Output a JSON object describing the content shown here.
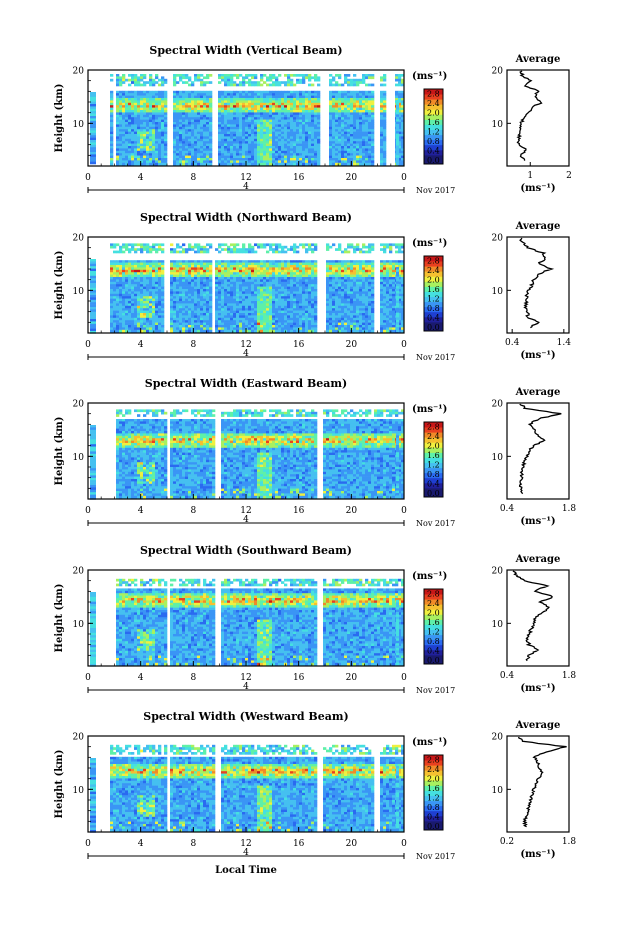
{
  "colors": {
    "scale": [
      "#1a1a6e",
      "#20209a",
      "#1f3fd0",
      "#2a6af0",
      "#3a95f5",
      "#45c0f0",
      "#45e0e0",
      "#5ef0a8",
      "#a8f060",
      "#f0f040",
      "#f5c030",
      "#f08a28",
      "#e84020",
      "#c81818"
    ],
    "band_under": "#1a1a6e"
  },
  "chart_data": [
    {
      "type": "heatmap",
      "title": "Spectral Width (Vertical Beam)",
      "ylabel": "Height (km)",
      "yticks": [
        "20",
        "10"
      ],
      "xticks": [
        "0",
        "4",
        "8",
        "12",
        "16",
        "20",
        "0"
      ],
      "date_label": "4",
      "month_label": "Nov 2017",
      "x_range": [
        0,
        24
      ],
      "y_range": [
        2,
        20
      ],
      "colorbar": {
        "unit": "(ms⁻¹)",
        "ticks": [
          "2.8",
          "2.4",
          "2.0",
          "1.6",
          "1.2",
          "0.8",
          "0.4",
          "0.0"
        ],
        "range": [
          0.0,
          3.0
        ]
      },
      "gaps_hours": [
        [
          1.7,
          2.0
        ],
        [
          5.8,
          6.3
        ],
        [
          9.4,
          9.8
        ],
        [
          17.4,
          18.2
        ],
        [
          21.5,
          22.0
        ],
        [
          22.6,
          23.2
        ]
      ],
      "upper_gap_km": [
        16.2,
        17.2
      ],
      "top_km": 20.0,
      "enhanced_layer_km": 13.5,
      "average": {
        "title": "Average",
        "xlabel": "(ms⁻¹)",
        "xticks": [
          "1",
          "2"
        ],
        "xrange": [
          0.4,
          2.0
        ],
        "yticks": [
          "20",
          "10"
        ],
        "profile": {
          "height_km": [
            3,
            4,
            5,
            6,
            7,
            8,
            9,
            10,
            11,
            12,
            13,
            14,
            15,
            16,
            17,
            18,
            19,
            20
          ],
          "width_ms": [
            0.85,
            0.75,
            0.9,
            0.7,
            0.7,
            0.72,
            0.72,
            0.75,
            0.85,
            0.95,
            1.05,
            1.3,
            1.1,
            1.2,
            0.9,
            1.0,
            0.8,
            0.75
          ]
        }
      }
    },
    {
      "type": "heatmap",
      "title": "Spectral Width (Northward Beam)",
      "ylabel": "Height (km)",
      "yticks": [
        "20",
        "10"
      ],
      "xticks": [
        "0",
        "4",
        "8",
        "12",
        "16",
        "20",
        "0"
      ],
      "date_label": "4",
      "month_label": "Nov 2017",
      "x_range": [
        0,
        24
      ],
      "y_range": [
        2,
        20
      ],
      "colorbar": {
        "unit": "(ms⁻¹)",
        "ticks": [
          "2.8",
          "2.4",
          "2.0",
          "1.6",
          "1.2",
          "0.8",
          "0.4",
          "0.0"
        ],
        "range": [
          0.0,
          3.0
        ]
      },
      "gaps_hours": [
        [
          5.7,
          6.1
        ],
        [
          9.2,
          9.6
        ],
        [
          17.3,
          18.0
        ],
        [
          21.6,
          22.1
        ]
      ],
      "upper_gap_km": [
        16.0,
        17.3
      ],
      "top_km": 18.8,
      "enhanced_layer_km": 14.0,
      "average": {
        "title": "Average",
        "xlabel": "(ms⁻¹)",
        "xticks": [
          "0.4",
          "1.4"
        ],
        "xrange": [
          0.3,
          1.5
        ],
        "yticks": [
          "20",
          "10"
        ],
        "profile": {
          "height_km": [
            3,
            4,
            5,
            6,
            7,
            8,
            9,
            10,
            11,
            12,
            13,
            14,
            15,
            16,
            17,
            18,
            19,
            20
          ],
          "width_ms": [
            0.75,
            0.9,
            0.7,
            0.7,
            0.65,
            0.68,
            0.68,
            0.72,
            0.78,
            0.82,
            0.9,
            1.15,
            0.9,
            1.05,
            1.0,
            0.7,
            0.6,
            0.55
          ]
        }
      }
    },
    {
      "type": "heatmap",
      "title": "Spectral Width (Eastward Beam)",
      "ylabel": "Height (km)",
      "yticks": [
        "20",
        "10"
      ],
      "xticks": [
        "0",
        "4",
        "8",
        "12",
        "16",
        "20",
        "0"
      ],
      "date_label": "4",
      "month_label": "Nov 2017",
      "x_range": [
        0,
        24
      ],
      "y_range": [
        2,
        20
      ],
      "colorbar": {
        "unit": "(ms⁻¹)",
        "ticks": [
          "2.8",
          "2.4",
          "2.0",
          "1.6",
          "1.2",
          "0.8",
          "0.4",
          "0.0"
        ],
        "range": [
          0.0,
          3.0
        ]
      },
      "gaps_hours": [
        [
          1.6,
          2.0
        ],
        [
          5.8,
          6.2
        ],
        [
          9.5,
          9.9
        ],
        [
          17.2,
          17.8
        ]
      ],
      "upper_gap_km": [
        17.4,
        17.9
      ],
      "top_km": 19.0,
      "enhanced_layer_km": 13.2,
      "average": {
        "title": "Average",
        "xlabel": "(ms⁻¹)",
        "xticks": [
          "0.4",
          "1.8"
        ],
        "xrange": [
          0.4,
          1.8
        ],
        "yticks": [
          "20",
          "10"
        ],
        "profile": {
          "height_km": [
            3,
            4,
            5,
            6,
            7,
            8,
            9,
            10,
            11,
            12,
            13,
            14,
            15,
            16,
            17,
            18,
            19,
            20
          ],
          "width_ms": [
            0.75,
            0.7,
            0.7,
            0.75,
            0.72,
            0.75,
            0.8,
            0.85,
            0.9,
            1.0,
            1.25,
            1.1,
            1.0,
            0.9,
            1.1,
            1.6,
            0.8,
            0.7
          ]
        }
      }
    },
    {
      "type": "heatmap",
      "title": "Spectral Width (Southward Beam)",
      "ylabel": "Height (km)",
      "yticks": [
        "20",
        "10"
      ],
      "xticks": [
        "0",
        "4",
        "8",
        "12",
        "16",
        "20",
        "0"
      ],
      "date_label": "4",
      "month_label": "Nov 2017",
      "x_range": [
        0,
        24
      ],
      "y_range": [
        2,
        20
      ],
      "colorbar": {
        "unit": "(ms⁻¹)",
        "ticks": [
          "2.8",
          "2.4",
          "2.0",
          "1.6",
          "1.2",
          "0.8",
          "0.4",
          "0.0"
        ],
        "range": [
          0.0,
          3.0
        ]
      },
      "gaps_hours": [
        [
          1.6,
          2.0
        ],
        [
          5.8,
          6.2
        ],
        [
          9.5,
          9.9
        ],
        [
          17.3,
          17.8
        ]
      ],
      "upper_gap_km": [
        16.8,
        17.2
      ],
      "top_km": 18.6,
      "enhanced_layer_km": 14.5,
      "average": {
        "title": "Average",
        "xlabel": "(ms⁻¹)",
        "xticks": [
          "0.4",
          "1.8"
        ],
        "xrange": [
          0.4,
          1.8
        ],
        "yticks": [
          "20",
          "10"
        ],
        "profile": {
          "height_km": [
            3,
            4,
            5,
            6,
            7,
            8,
            9,
            10,
            11,
            12,
            13,
            14,
            15,
            16,
            17,
            18,
            19,
            20
          ],
          "width_ms": [
            0.85,
            0.9,
            1.1,
            0.9,
            0.85,
            0.9,
            0.95,
            1.0,
            1.05,
            1.2,
            1.35,
            1.15,
            1.45,
            1.0,
            1.3,
            0.8,
            0.6,
            0.55
          ]
        }
      }
    },
    {
      "type": "heatmap",
      "title": "Spectral Width (Westward Beam)",
      "ylabel": "Height (km)",
      "yticks": [
        "20",
        "10"
      ],
      "xticks": [
        "0",
        "4",
        "8",
        "12",
        "16",
        "20",
        "0"
      ],
      "date_label": "4",
      "month_label": "Nov 2017",
      "xlabel": "Local Time",
      "x_range": [
        0,
        24
      ],
      "y_range": [
        2,
        20
      ],
      "colorbar": {
        "unit": "(ms⁻¹)",
        "ticks": [
          "2.8",
          "2.4",
          "2.0",
          "1.6",
          "1.2",
          "0.8",
          "0.4",
          "0.0"
        ],
        "range": [
          0.0,
          3.0
        ]
      },
      "gaps_hours": [
        [
          5.8,
          6.2
        ],
        [
          9.5,
          9.9
        ],
        [
          17.3,
          17.8
        ],
        [
          21.5,
          22.0
        ]
      ],
      "upper_gap_km": [
        16.2,
        17.0
      ],
      "top_km": 18.4,
      "enhanced_layer_km": 13.6,
      "average": {
        "title": "Average",
        "xlabel": "(ms⁻¹)",
        "xticks": [
          "0.2",
          "1.8"
        ],
        "xrange": [
          0.2,
          1.8
        ],
        "yticks": [
          "20",
          "10"
        ],
        "profile": {
          "height_km": [
            3,
            4,
            5,
            6,
            7,
            8,
            9,
            10,
            11,
            12,
            13,
            14,
            15,
            16,
            17,
            18,
            19,
            20
          ],
          "width_ms": [
            0.7,
            0.65,
            0.7,
            0.75,
            0.78,
            0.8,
            0.85,
            0.9,
            0.95,
            1.0,
            1.1,
            1.05,
            1.0,
            0.9,
            1.2,
            1.7,
            0.6,
            0.5
          ]
        }
      }
    }
  ]
}
